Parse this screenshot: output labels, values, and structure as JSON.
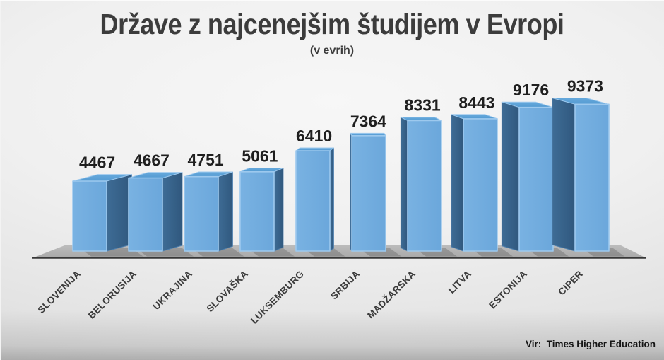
{
  "title": "Države z najcenejšim študijem v Evropi",
  "subtitle": "(v evrih)",
  "source_note": "Vir:  Times Higher Education",
  "chart_data": {
    "type": "bar",
    "style": "3d-perspective-boxes",
    "title": "Države z najcenejšim študijem v Evropi",
    "subtitle": "(v evrih)",
    "categories": [
      "SLOVENIJA",
      "BELORUSIJA",
      "UKRAJINA",
      "SLOVAŠKA",
      "LUKSEMBURG",
      "SRBIJA",
      "MADŽARSKA",
      "LITVA",
      "ESTONIJA",
      "CIPER"
    ],
    "values": [
      4467,
      4667,
      4751,
      5061,
      6410,
      7364,
      8331,
      8443,
      9176,
      9373
    ],
    "value_labels_shown": true,
    "xlabel": "",
    "ylabel": "",
    "ylim": [
      0,
      10000
    ],
    "grid": false,
    "legend": "none",
    "category_label_rotation_deg": 45,
    "source": "Vir:  Times Higher Education",
    "colors": {
      "bar_front": "#6BA7DB",
      "bar_front_light": "#79B2E2",
      "bar_side": "#30587E",
      "bar_side_light": "#3E6C95",
      "bar_top": "#549BD2",
      "bar_edge": "#9DC9EE",
      "floor": "#B5B5B5",
      "floor_shadow": "#8F8F8F",
      "axis_line": "#383838",
      "value_label": "#1F1F1F",
      "category_label": "#3A3A3A",
      "title": "#3C3C3C",
      "background": "#E9E9E9"
    }
  }
}
